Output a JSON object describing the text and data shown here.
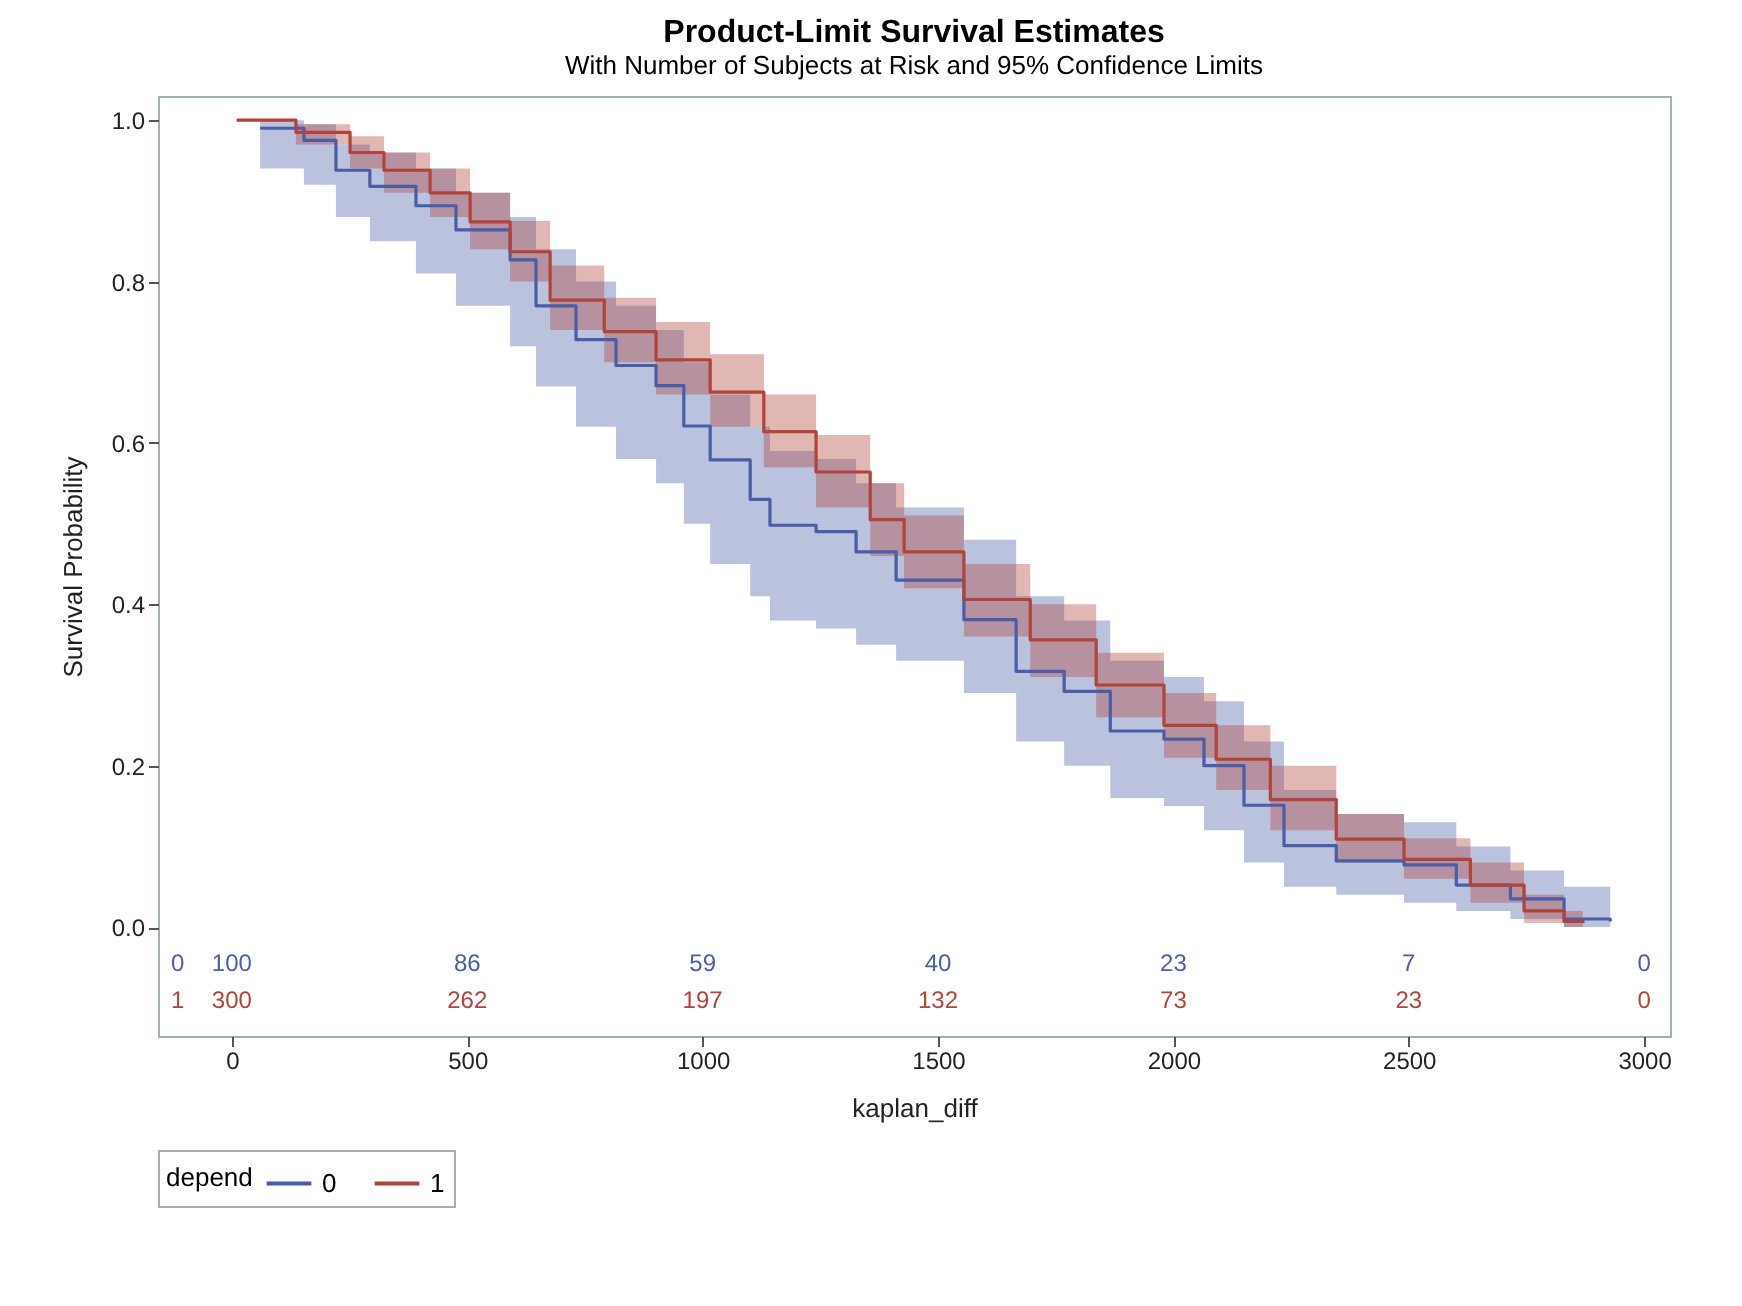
{
  "chart_data": {
    "type": "step",
    "title": "Product-Limit Survival Estimates",
    "subtitle": "With Number of Subjects at Risk and 95% Confidence Limits",
    "xlabel": "kaplan_diff",
    "ylabel": "Survival Probability",
    "legend_title": "depend",
    "legend": "bottom",
    "grid": false,
    "xlim": [
      -157,
      3055
    ],
    "xticks": [
      0,
      500,
      1000,
      1500,
      2000,
      2500,
      3000
    ],
    "ylim": [
      -0.135,
      1.03
    ],
    "yticks": [
      {
        "value": 0,
        "label": "0.0"
      },
      0.2,
      0.4,
      0.6,
      0.8,
      {
        "value": 1,
        "label": "1.0"
      }
    ],
    "series": [
      {
        "name": "0",
        "color": "#4a5ea8",
        "x": [
          60,
          153,
          221,
          293,
          391,
          476,
          591,
          646,
          731,
          816,
          901,
          960,
          1016,
          1101,
          1143,
          1241,
          1326,
          1411,
          1555,
          1666,
          1768,
          1866,
          1980,
          2065,
          2150,
          2235,
          2346,
          2490,
          2601,
          2716,
          2830,
          2928
        ],
        "values": [
          0.99,
          0.975,
          0.938,
          0.918,
          0.894,
          0.864,
          0.827,
          0.77,
          0.728,
          0.696,
          0.671,
          0.621,
          0.579,
          0.53,
          0.498,
          0.49,
          0.465,
          0.43,
          0.381,
          0.317,
          0.292,
          0.243,
          0.233,
          0.2,
          0.151,
          0.101,
          0.082,
          0.077,
          0.052,
          0.035,
          0.01,
          0.007
        ],
        "lower": [
          0.94,
          0.92,
          0.88,
          0.85,
          0.81,
          0.77,
          0.72,
          0.67,
          0.62,
          0.58,
          0.55,
          0.5,
          0.45,
          0.41,
          0.38,
          0.37,
          0.35,
          0.33,
          0.29,
          0.23,
          0.2,
          0.16,
          0.15,
          0.12,
          0.08,
          0.05,
          0.04,
          0.03,
          0.02,
          0.01,
          0.0,
          0.0
        ],
        "upper": [
          1.0,
          0.995,
          0.97,
          0.96,
          0.94,
          0.91,
          0.88,
          0.84,
          0.8,
          0.77,
          0.74,
          0.7,
          0.66,
          0.62,
          0.59,
          0.58,
          0.55,
          0.52,
          0.48,
          0.41,
          0.38,
          0.33,
          0.31,
          0.28,
          0.23,
          0.17,
          0.14,
          0.13,
          0.1,
          0.07,
          0.05,
          0.04
        ]
      },
      {
        "name": "1",
        "color": "#b0433a",
        "x": [
          10,
          136,
          251,
          323,
          421,
          506,
          591,
          676,
          791,
          901,
          1016,
          1130,
          1241,
          1356,
          1428,
          1555,
          1696,
          1836,
          1980,
          2091,
          2206,
          2346,
          2490,
          2631,
          2745,
          2830,
          2870
        ],
        "values": [
          1.0,
          0.985,
          0.96,
          0.938,
          0.91,
          0.874,
          0.837,
          0.777,
          0.738,
          0.703,
          0.663,
          0.614,
          0.564,
          0.505,
          0.465,
          0.406,
          0.356,
          0.3,
          0.25,
          0.208,
          0.158,
          0.109,
          0.084,
          0.052,
          0.02,
          0.007,
          0.005
        ],
        "lower": [
          1.0,
          0.97,
          0.94,
          0.91,
          0.88,
          0.84,
          0.8,
          0.74,
          0.7,
          0.66,
          0.62,
          0.57,
          0.52,
          0.46,
          0.42,
          0.36,
          0.31,
          0.26,
          0.21,
          0.17,
          0.12,
          0.08,
          0.06,
          0.03,
          0.005,
          0.0,
          0.0
        ],
        "upper": [
          1.0,
          0.995,
          0.98,
          0.96,
          0.94,
          0.91,
          0.875,
          0.82,
          0.78,
          0.75,
          0.71,
          0.66,
          0.61,
          0.55,
          0.51,
          0.45,
          0.4,
          0.34,
          0.29,
          0.25,
          0.2,
          0.14,
          0.11,
          0.08,
          0.04,
          0.02,
          0.015
        ]
      }
    ],
    "annotations": [
      "0",
      "100",
      "86",
      "59",
      "40",
      "23",
      "7",
      "0",
      "1",
      "300",
      "262",
      "197",
      "132",
      "73",
      "23",
      "0"
    ]
  }
}
